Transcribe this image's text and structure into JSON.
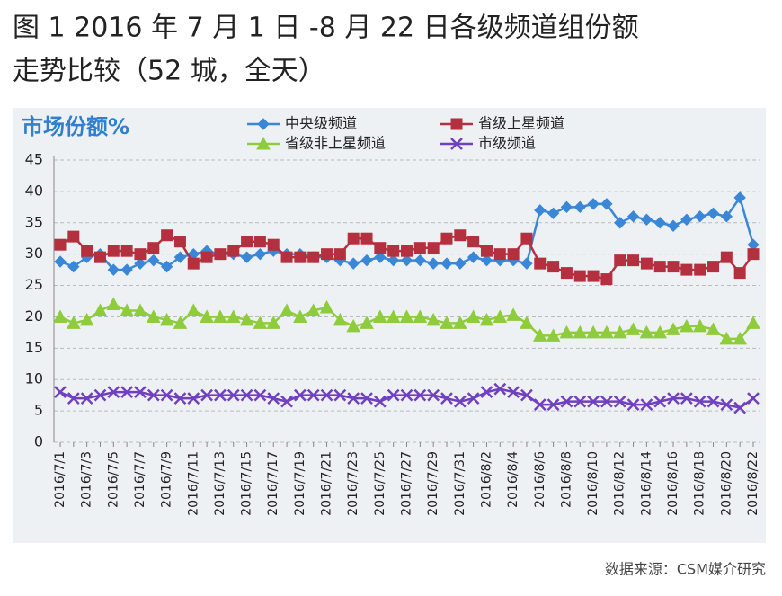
{
  "chart_data": {
    "type": "line",
    "title": "图 1  2016 年 7 月 1 日 -8 月 22 日各级频道组份额",
    "subtitle": "走势比较（52 城，全天）",
    "y_label": "市场份额%",
    "source": "数据来源：CSM媒介研究",
    "categories": [
      "2016/7/1",
      null,
      "2016/7/3",
      null,
      "2016/7/5",
      null,
      "2016/7/7",
      null,
      "2016/7/9",
      null,
      "2016/7/11",
      null,
      "2016/7/13",
      null,
      "2016/7/15",
      null,
      "2016/7/17",
      null,
      "2016/7/19",
      null,
      "2016/7/21",
      null,
      "2016/7/23",
      null,
      "2016/7/25",
      null,
      "2016/7/27",
      null,
      "2016/7/29",
      null,
      "2016/7/31",
      null,
      "2016/8/2",
      null,
      "2016/8/4",
      null,
      "2016/8/6",
      null,
      "2016/8/8",
      null,
      "2016/8/10",
      null,
      "2016/8/12",
      null,
      "2016/8/14",
      null,
      "2016/8/16",
      null,
      "2016/8/18",
      null,
      "2016/8/20",
      null,
      "2016/8/22"
    ],
    "series": [
      {
        "name": "中央级频道",
        "color": "#3a87d8",
        "marker": "diamond",
        "values": [
          28.8,
          28,
          29.5,
          30,
          27.5,
          27.5,
          28.5,
          29,
          28,
          29.5,
          30,
          30.5,
          30,
          30,
          29.5,
          30,
          30.5,
          30,
          30,
          29.5,
          29.5,
          29,
          28.5,
          29,
          29.5,
          29,
          29,
          29,
          28.5,
          28.5,
          28.5,
          29.5,
          29,
          29,
          29,
          28.5,
          37,
          36.5,
          37.5,
          37.5,
          38,
          38,
          35,
          36,
          35.5,
          35,
          34.5,
          35.5,
          36,
          36.5,
          36,
          39,
          31.5
        ]
      },
      {
        "name": "省级上星频道",
        "color": "#b5303e",
        "marker": "square",
        "values": [
          31.5,
          32.8,
          30.5,
          29.5,
          30.5,
          30.5,
          30,
          31,
          33,
          32,
          28.5,
          29.5,
          30,
          30.5,
          32,
          32,
          31.5,
          29.5,
          29.5,
          29.5,
          30,
          30,
          32.5,
          32.5,
          31,
          30.5,
          30.5,
          31,
          31,
          32.5,
          33,
          32,
          30.5,
          30,
          30,
          32.5,
          28.5,
          28,
          27,
          26.5,
          26.5,
          26,
          29,
          29,
          28.5,
          28,
          28,
          27.5,
          27.5,
          28,
          29.5,
          27,
          30
        ]
      },
      {
        "name": "省级非上星频道",
        "color": "#8fcc3c",
        "marker": "triangle",
        "values": [
          20,
          19,
          19.5,
          21,
          22,
          21,
          21,
          20,
          19.5,
          19,
          21,
          20,
          20,
          20,
          19.5,
          19,
          19,
          21,
          20,
          21,
          21.5,
          19.5,
          18.5,
          19,
          20,
          20,
          20,
          20,
          19.5,
          19,
          19,
          20,
          19.5,
          20,
          20.3,
          19,
          17,
          17,
          17.5,
          17.5,
          17.5,
          17.5,
          17.5,
          18,
          17.5,
          17.5,
          18,
          18.5,
          18.5,
          18,
          16.5,
          16.5,
          19
        ]
      },
      {
        "name": "市级频道",
        "color": "#7040c0",
        "marker": "cross",
        "values": [
          8,
          7,
          7,
          7.5,
          8,
          8,
          8,
          7.5,
          7.5,
          7,
          7,
          7.5,
          7.5,
          7.5,
          7.5,
          7.5,
          7,
          6.5,
          7.5,
          7.5,
          7.5,
          7.5,
          7,
          7,
          6.5,
          7.5,
          7.5,
          7.5,
          7.5,
          7,
          6.5,
          7,
          8,
          8.5,
          8,
          7.5,
          6,
          6,
          6.5,
          6.5,
          6.5,
          6.5,
          6.5,
          6,
          6,
          6.5,
          7,
          7,
          6.5,
          6.5,
          6,
          5.5,
          7
        ]
      }
    ],
    "ylim": [
      0,
      45
    ],
    "yticks": [
      0,
      5,
      10,
      15,
      20,
      25,
      30,
      35,
      40,
      45
    ],
    "grid": true
  }
}
